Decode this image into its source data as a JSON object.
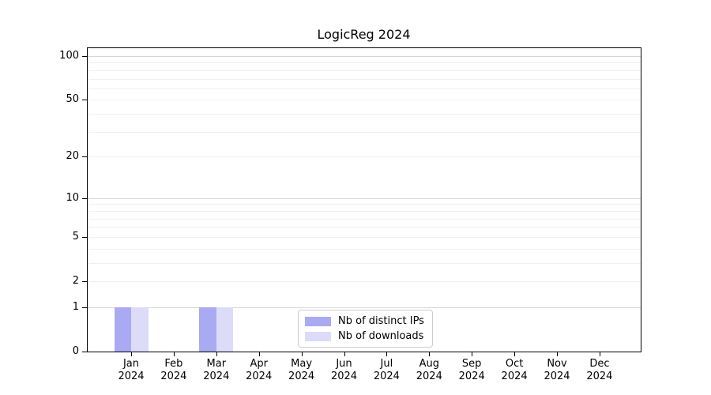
{
  "chart_data": {
    "type": "bar",
    "title": "LogicReg 2024",
    "categories": [
      "Jan",
      "Feb",
      "Mar",
      "Apr",
      "May",
      "Jun",
      "Jul",
      "Aug",
      "Sep",
      "Oct",
      "Nov",
      "Dec"
    ],
    "category_year": "2024",
    "series": [
      {
        "name": "Nb of distinct IPs",
        "color": "#aaaaf2",
        "values": [
          1,
          0,
          1,
          0,
          0,
          0,
          0,
          0,
          0,
          0,
          0,
          0
        ]
      },
      {
        "name": "Nb of downloads",
        "color": "#dcdcf9",
        "values": [
          1,
          0,
          1,
          0,
          0,
          0,
          0,
          0,
          0,
          0,
          0,
          0
        ]
      }
    ],
    "xlabel": "",
    "ylabel": "",
    "y_scale": "log1p",
    "y_ticks": [
      0,
      1,
      2,
      5,
      10,
      20,
      50,
      100
    ],
    "ylim": [
      0,
      113
    ],
    "grid": {
      "major_values": [
        1,
        10,
        100
      ],
      "minor_values": [
        2,
        3,
        4,
        5,
        6,
        7,
        8,
        9,
        20,
        30,
        40,
        50,
        60,
        70,
        80,
        90
      ]
    },
    "legend_position": "lower center"
  }
}
